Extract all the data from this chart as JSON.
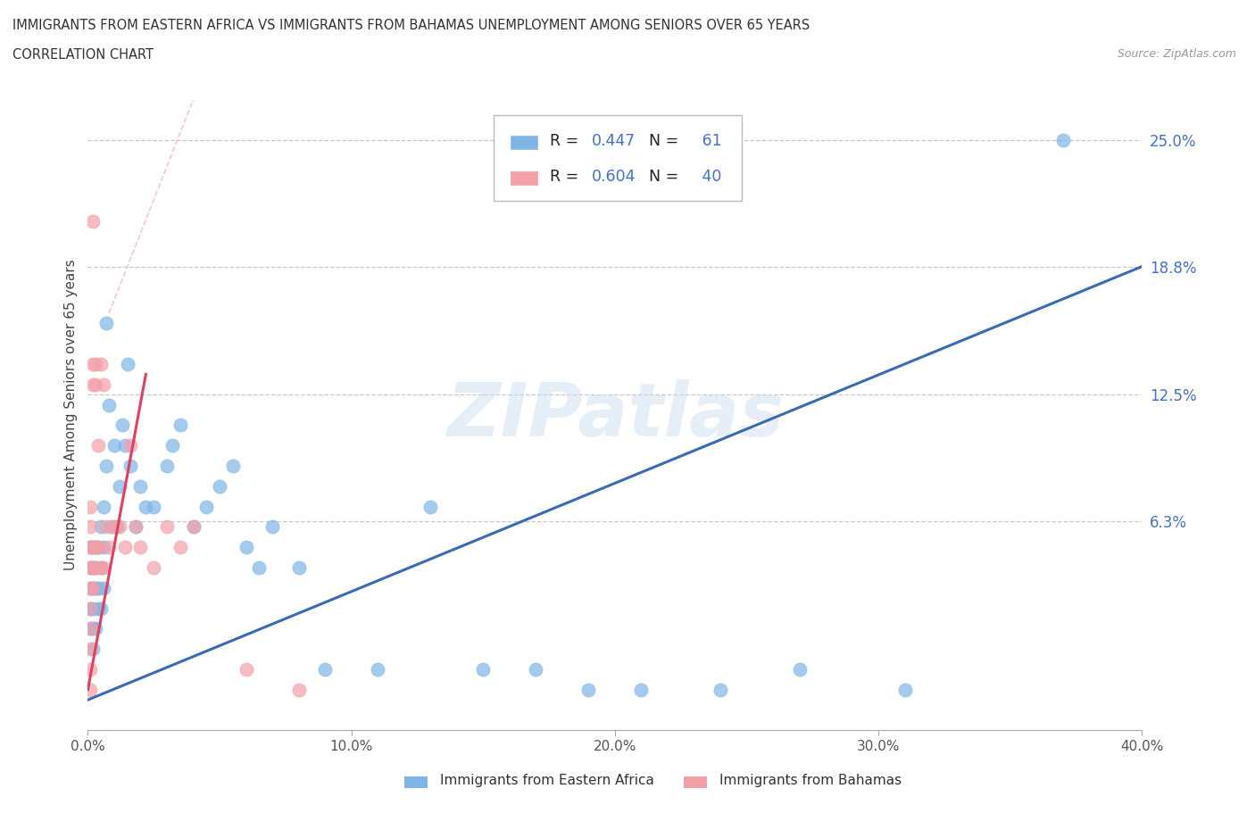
{
  "title_line1": "IMMIGRANTS FROM EASTERN AFRICA VS IMMIGRANTS FROM BAHAMAS UNEMPLOYMENT AMONG SENIORS OVER 65 YEARS",
  "title_line2": "CORRELATION CHART",
  "source": "Source: ZipAtlas.com",
  "ylabel": "Unemployment Among Seniors over 65 years",
  "xlim": [
    0.0,
    0.4
  ],
  "ylim": [
    -0.04,
    0.27
  ],
  "yticks": [
    0.063,
    0.125,
    0.188,
    0.25
  ],
  "ytick_labels": [
    "6.3%",
    "12.5%",
    "18.8%",
    "25.0%"
  ],
  "xticks": [
    0.0,
    0.1,
    0.2,
    0.3,
    0.4
  ],
  "xtick_labels": [
    "0.0%",
    "10.0%",
    "20.0%",
    "30.0%",
    "40.0%"
  ],
  "color_eastern": "#7EB6E8",
  "color_bahamas": "#F4A0A8",
  "trendline_color_eastern": "#3A6BB5",
  "trendline_color_bahamas": "#E04060",
  "trendline_dash_color": "#F0B0B8",
  "R_eastern": 0.447,
  "N_eastern": 61,
  "R_bahamas": 0.604,
  "N_bahamas": 40,
  "watermark": "ZIPatlas",
  "blue_text_color": "#4472C4",
  "title_color": "#333333",
  "source_color": "#999999",
  "eastern_x": [
    0.001,
    0.001,
    0.001,
    0.001,
    0.001,
    0.002,
    0.002,
    0.002,
    0.002,
    0.002,
    0.002,
    0.003,
    0.003,
    0.003,
    0.003,
    0.004,
    0.004,
    0.004,
    0.005,
    0.005,
    0.005,
    0.006,
    0.006,
    0.006,
    0.007,
    0.007,
    0.008,
    0.009,
    0.01,
    0.011,
    0.012,
    0.013,
    0.014,
    0.015,
    0.016,
    0.018,
    0.02,
    0.022,
    0.025,
    0.03,
    0.032,
    0.035,
    0.04,
    0.045,
    0.05,
    0.055,
    0.06,
    0.065,
    0.07,
    0.08,
    0.09,
    0.11,
    0.13,
    0.15,
    0.17,
    0.19,
    0.21,
    0.24,
    0.27,
    0.31,
    0.37
  ],
  "eastern_y": [
    0.04,
    0.05,
    0.03,
    0.02,
    0.01,
    0.05,
    0.04,
    0.03,
    0.02,
    0.01,
    0.0,
    0.05,
    0.04,
    0.03,
    0.01,
    0.05,
    0.03,
    0.02,
    0.06,
    0.04,
    0.02,
    0.07,
    0.05,
    0.03,
    0.16,
    0.09,
    0.12,
    0.06,
    0.1,
    0.06,
    0.08,
    0.11,
    0.1,
    0.14,
    0.09,
    0.06,
    0.08,
    0.07,
    0.07,
    0.09,
    0.1,
    0.11,
    0.06,
    0.07,
    0.08,
    0.09,
    0.05,
    0.04,
    0.06,
    0.04,
    -0.01,
    -0.01,
    0.07,
    -0.01,
    -0.01,
    -0.02,
    -0.02,
    -0.02,
    -0.01,
    -0.02,
    0.25
  ],
  "bahamas_x": [
    0.001,
    0.001,
    0.001,
    0.001,
    0.001,
    0.001,
    0.001,
    0.001,
    0.001,
    0.001,
    0.002,
    0.002,
    0.002,
    0.002,
    0.002,
    0.002,
    0.003,
    0.003,
    0.003,
    0.003,
    0.004,
    0.004,
    0.005,
    0.005,
    0.006,
    0.006,
    0.007,
    0.008,
    0.01,
    0.012,
    0.014,
    0.016,
    0.018,
    0.02,
    0.025,
    0.03,
    0.035,
    0.04,
    0.06,
    0.08
  ],
  "bahamas_y": [
    0.07,
    0.06,
    0.05,
    0.04,
    0.03,
    0.02,
    0.01,
    0.0,
    -0.01,
    -0.02,
    0.21,
    0.14,
    0.13,
    0.05,
    0.04,
    0.03,
    0.14,
    0.13,
    0.05,
    0.04,
    0.1,
    0.05,
    0.14,
    0.04,
    0.13,
    0.04,
    0.06,
    0.05,
    0.06,
    0.06,
    0.05,
    0.1,
    0.06,
    0.05,
    0.04,
    0.06,
    0.05,
    0.06,
    -0.01,
    -0.02
  ],
  "trendline_eastern_x0": 0.0,
  "trendline_eastern_x1": 0.4,
  "trendline_eastern_y0": -0.025,
  "trendline_eastern_y1": 0.188,
  "trendline_bahamas_x0": 0.0,
  "trendline_bahamas_x1": 0.022,
  "trendline_bahamas_y0": -0.02,
  "trendline_bahamas_y1": 0.135,
  "refline_x0": 0.008,
  "refline_x1": 0.04,
  "refline_y0": 0.165,
  "refline_y1": 0.27
}
